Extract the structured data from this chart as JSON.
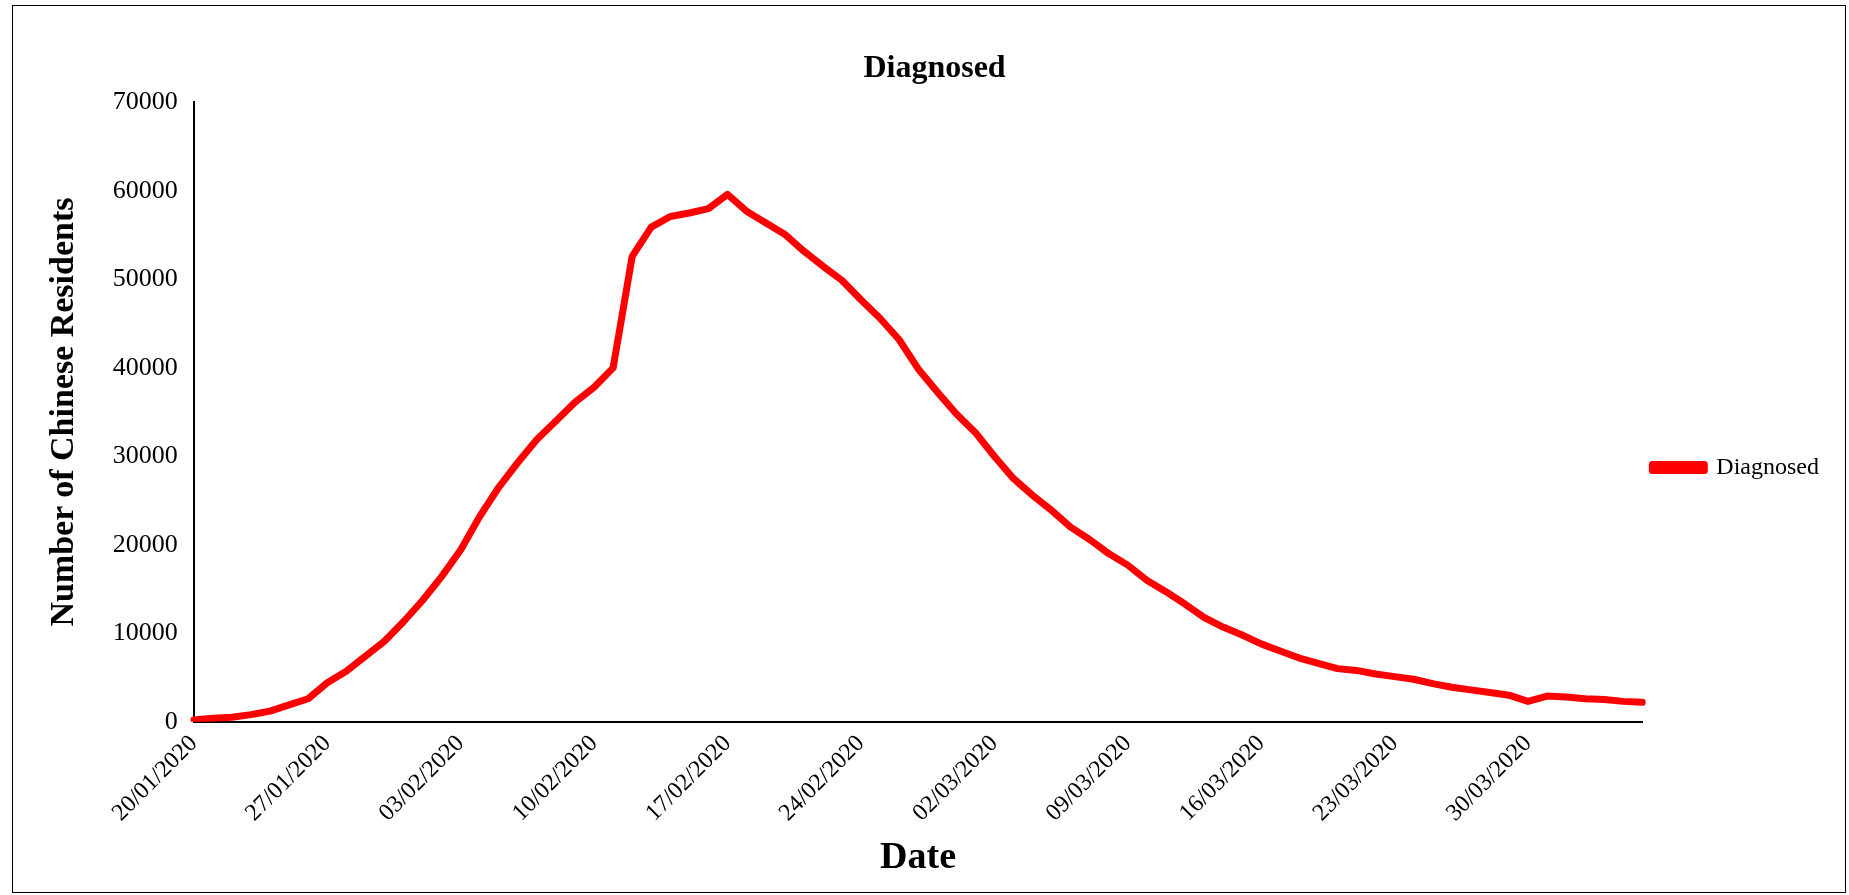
{
  "chart_data": {
    "type": "line",
    "title": "Diagnosed",
    "xlabel": "Date",
    "ylabel": "Number of Chinese Residents",
    "categories": [
      "20/01/2020",
      null,
      null,
      null,
      null,
      null,
      null,
      "27/01/2020",
      null,
      null,
      null,
      null,
      null,
      null,
      "03/02/2020",
      null,
      null,
      null,
      null,
      null,
      null,
      "10/02/2020",
      null,
      null,
      null,
      null,
      null,
      null,
      "17/02/2020",
      null,
      null,
      null,
      null,
      null,
      null,
      "24/02/2020",
      null,
      null,
      null,
      null,
      null,
      null,
      "02/03/2020",
      null,
      null,
      null,
      null,
      null,
      null,
      "09/03/2020",
      null,
      null,
      null,
      null,
      null,
      null,
      "16/03/2020",
      null,
      null,
      null,
      null,
      null,
      null,
      "23/03/2020",
      null,
      null,
      null,
      null,
      null,
      null,
      "30/03/2020",
      null,
      null,
      null,
      null,
      null,
      null
    ],
    "series": [
      {
        "name": "Diagnosed",
        "color": "#ff0000",
        "values": [
          200,
          400,
          500,
          800,
          1200,
          1900,
          2600,
          4400,
          5700,
          7400,
          9100,
          11300,
          13700,
          16400,
          19400,
          23200,
          26500,
          29300,
          31900,
          34000,
          36100,
          37800,
          40000,
          52600,
          55900,
          57100,
          57500,
          58000,
          59600,
          57700,
          56400,
          55100,
          53200,
          51500,
          49900,
          47700,
          45600,
          43200,
          39900,
          37300,
          34800,
          32700,
          30000,
          27500,
          25600,
          23900,
          22000,
          20600,
          19000,
          17700,
          16000,
          14700,
          13300,
          11800,
          10700,
          9800,
          8800,
          8000,
          7200,
          6600,
          6000,
          5800,
          5400,
          5100,
          4800,
          4300,
          3900,
          3600,
          3300,
          3000,
          2300,
          2900,
          2800,
          2600,
          2500,
          2300,
          2200
        ]
      }
    ],
    "ylim": [
      0,
      70000
    ],
    "yticks": [
      0,
      10000,
      20000,
      30000,
      40000,
      50000,
      60000,
      70000
    ],
    "grid": false,
    "legend": "right",
    "marker": "none",
    "line_style": "solid"
  }
}
